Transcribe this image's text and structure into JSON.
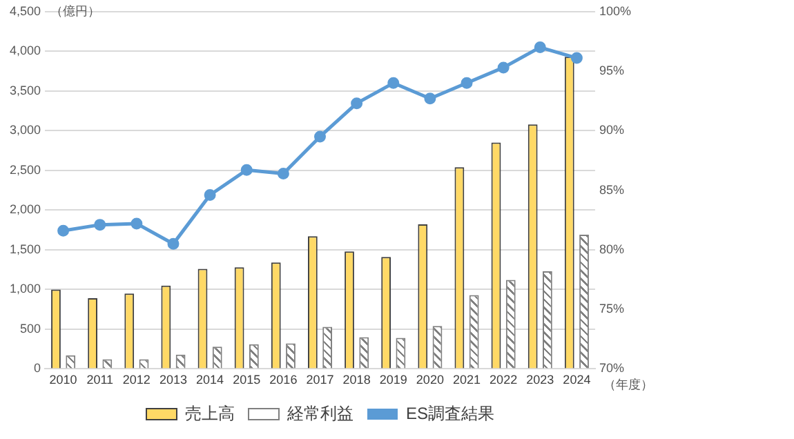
{
  "chart_data": {
    "type": "bar",
    "categories": [
      "2010",
      "2011",
      "2012",
      "2013",
      "2014",
      "2015",
      "2016",
      "2017",
      "2018",
      "2019",
      "2020",
      "2021",
      "2022",
      "2023",
      "2024"
    ],
    "series": [
      {
        "name": "売上高",
        "color": "#ffd966",
        "values": [
          1000,
          890,
          950,
          1050,
          1260,
          1280,
          1340,
          1670,
          1480,
          1410,
          1820,
          2540,
          2850,
          3080,
          3930
        ]
      },
      {
        "name": "経常利益",
        "color": "#7f7f7f",
        "values": [
          170,
          120,
          120,
          180,
          280,
          310,
          320,
          530,
          400,
          390,
          540,
          930,
          1120,
          1230,
          1690
        ]
      },
      {
        "name": "ES調査結果",
        "type": "line",
        "axis": "y2",
        "color": "#5b9bd5",
        "values": [
          81.6,
          82.1,
          82.2,
          80.5,
          84.6,
          86.7,
          86.4,
          89.5,
          92.3,
          94.0,
          92.7,
          94.0,
          95.3,
          97.0,
          96.1
        ]
      }
    ],
    "ylim": [
      0,
      4500
    ],
    "yticks": [
      0,
      500,
      {
        "value": 1000,
        "label": "1,000"
      },
      {
        "value": 1500,
        "label": "1,500"
      },
      {
        "value": 2000,
        "label": "2,000"
      },
      {
        "value": 2500,
        "label": "2,500"
      },
      {
        "value": 3000,
        "label": "3,000"
      },
      {
        "value": 3500,
        "label": "3,500"
      },
      {
        "value": 4000,
        "label": "4,000"
      },
      {
        "value": 4500,
        "label": "4,500"
      }
    ],
    "y2lim": [
      70,
      100
    ],
    "y2ticks": [
      {
        "value": 70,
        "label": "70%"
      },
      {
        "value": 75,
        "label": "75%"
      },
      {
        "value": 80,
        "label": "80%"
      },
      {
        "value": 85,
        "label": "85%"
      },
      {
        "value": 90,
        "label": "90%"
      },
      {
        "value": 95,
        "label": "95%"
      },
      {
        "value": 100,
        "label": "100%"
      }
    ],
    "annotations": [
      "（億円）",
      "（年度）"
    ],
    "grid": "y",
    "legend": "bottom",
    "marker": "circle",
    "line_style": "solid"
  }
}
